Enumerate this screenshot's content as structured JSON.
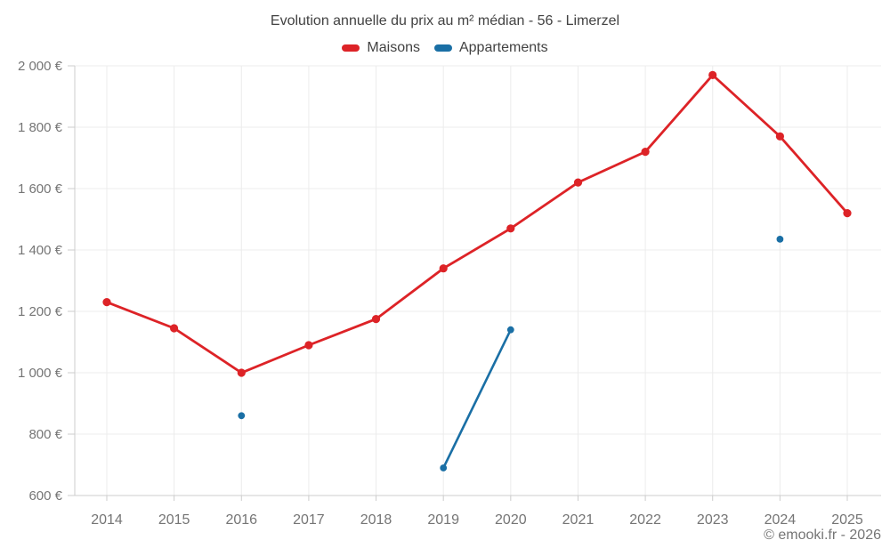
{
  "chart_data": {
    "type": "line",
    "title": "Evolution annuelle du prix au m² médian - 56 - Limerzel",
    "categories": [
      "2014",
      "2015",
      "2016",
      "2017",
      "2018",
      "2019",
      "2020",
      "2021",
      "2022",
      "2023",
      "2024",
      "2025"
    ],
    "series": [
      {
        "name": "Maisons",
        "color": "#dd2327",
        "values": [
          1230,
          1145,
          1000,
          1090,
          1175,
          1340,
          1470,
          1620,
          1720,
          1970,
          1770,
          1520
        ]
      },
      {
        "name": "Appartements",
        "color": "#1a6fa5",
        "values": [
          null,
          null,
          860,
          null,
          null,
          690,
          1140,
          null,
          null,
          null,
          1435,
          null
        ]
      }
    ],
    "xlabel": "",
    "ylabel": "",
    "ylim": [
      600,
      2000
    ],
    "yticks": [
      {
        "value": 600,
        "label": "600 €"
      },
      {
        "value": 800,
        "label": "800 €"
      },
      {
        "value": 1000,
        "label": "1 000 €"
      },
      {
        "value": 1200,
        "label": "1 200 €"
      },
      {
        "value": 1400,
        "label": "1 400 €"
      },
      {
        "value": 1600,
        "label": "1 600 €"
      },
      {
        "value": 1800,
        "label": "1 800 €"
      },
      {
        "value": 2000,
        "label": "2 000 €"
      }
    ],
    "grid": true,
    "legend_position": "top",
    "footer": "© emooki.fr - 2026",
    "style": {
      "background": "#ffffff",
      "grid_color": "#ececec",
      "axis_color": "#cccccc",
      "tick_label_color": "#757575",
      "title_color": "#424242"
    }
  }
}
